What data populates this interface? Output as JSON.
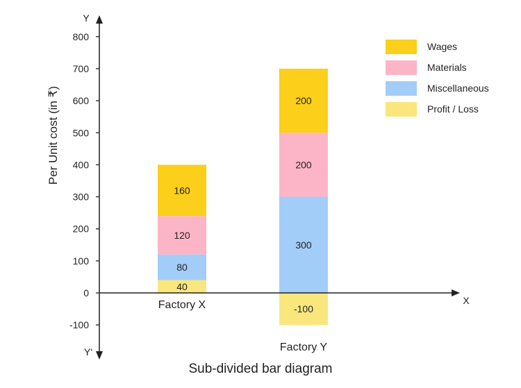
{
  "chart_data": {
    "type": "bar",
    "stacked": true,
    "title": "Sub-divided bar diagram",
    "xlabel": "",
    "ylabel": "Per Unit cost (in ₹)",
    "x_axis_letter": "X",
    "y_axis_letter": "Y",
    "y_neg_axis_letter": "Y'",
    "ylim": [
      -100,
      800
    ],
    "yticks": [
      "800",
      "700",
      "600",
      "500",
      "400",
      "300",
      "200",
      "100",
      "0",
      "-100"
    ],
    "ytick_values": [
      800,
      700,
      600,
      500,
      400,
      300,
      200,
      100,
      0,
      -100
    ],
    "categories": [
      "Factory X",
      "Factory Y"
    ],
    "series": [
      {
        "name": "Profit / Loss",
        "values": [
          40,
          -100
        ],
        "labels": [
          "40",
          "-100"
        ],
        "color": "#f9e77e"
      },
      {
        "name": "Miscellaneous",
        "values": [
          80,
          300
        ],
        "labels": [
          "80",
          "300"
        ],
        "color": "#a2cdf8"
      },
      {
        "name": "Materials",
        "values": [
          120,
          200
        ],
        "labels": [
          "120",
          "200"
        ],
        "color": "#fcb5c7"
      },
      {
        "name": "Wages",
        "values": [
          160,
          200
        ],
        "labels": [
          "160",
          "200"
        ],
        "color": "#fbcf1a"
      }
    ],
    "legend": {
      "position": "top-right",
      "order": [
        "Wages",
        "Materials",
        "Miscellaneous",
        "Profit / Loss"
      ]
    },
    "grid": false
  }
}
